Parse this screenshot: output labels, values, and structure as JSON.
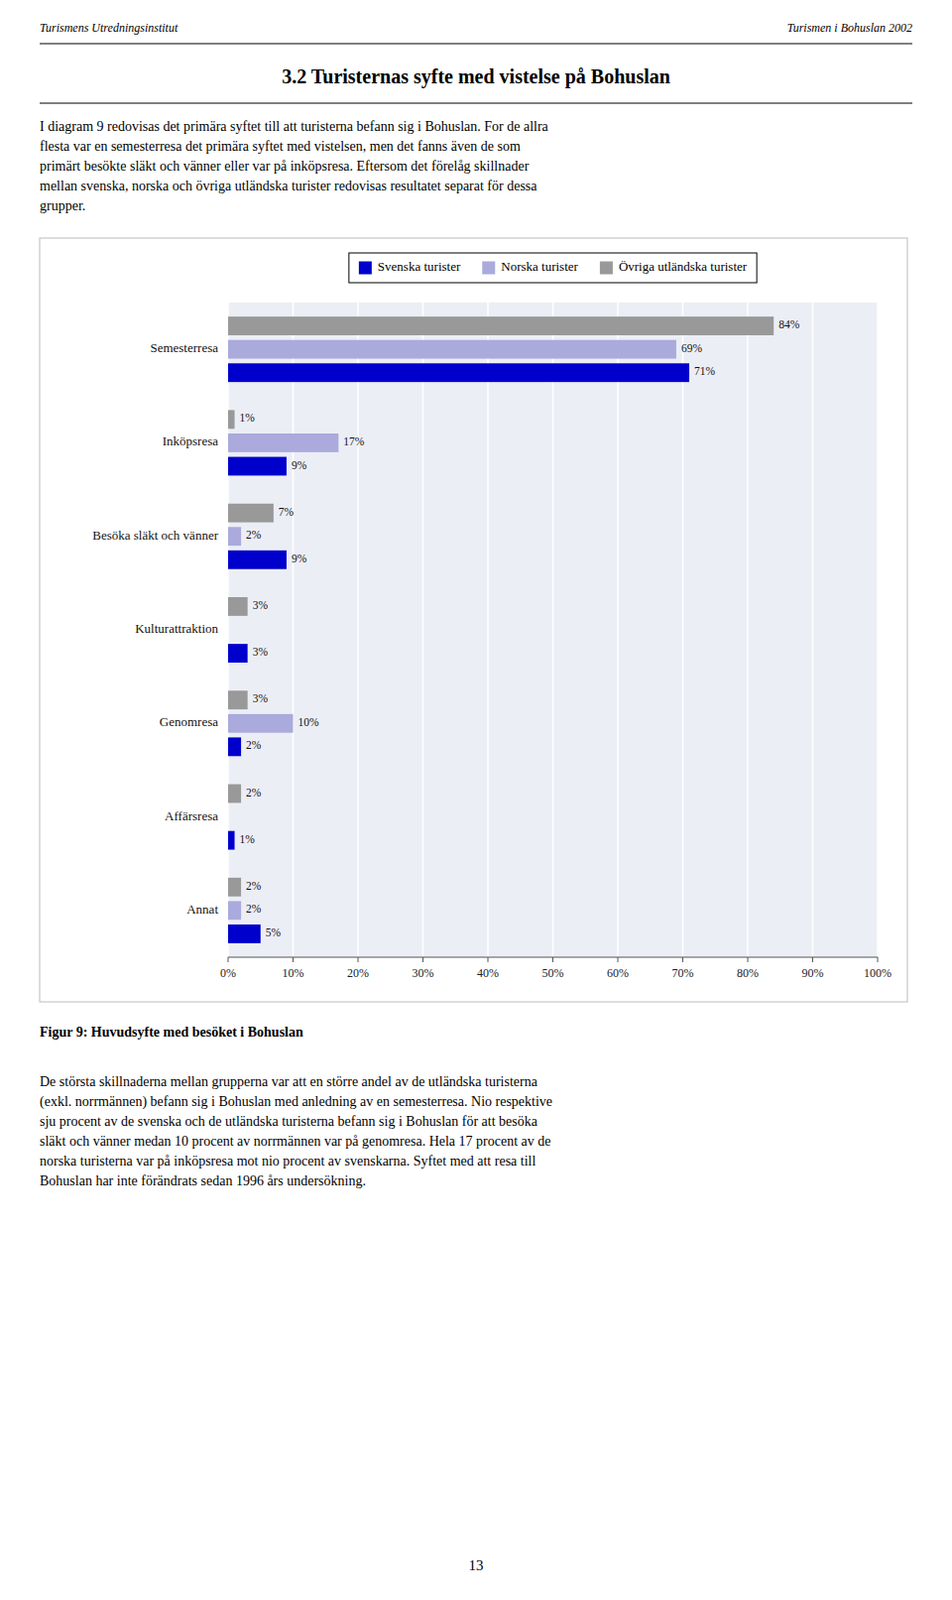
{
  "header": [
    "Turismens Utredningsinstitut",
    "Turismen i Bohuslan 2002"
  ],
  "heading": "3.2  Turisternas syfte med vistelse på Bohuslan",
  "intro": [
    "I diagram 9 redovisas det primära syftet till att turisterna befann sig i Bohuslan. For de allra",
    "flesta var en semesterresa det primära syftet med vistelsen, men det fanns även de som",
    "primärt besökte släkt och vänner eller var på inköpsresa. Eftersom det förelåg skillnader",
    "mellan svenska, norska och övriga utländska turister redovisas resultatet separat för dessa",
    "grupper."
  ],
  "body": [
    "De största skillnaderna mellan grupperna var att en större andel av de utländska turisterna",
    "(exkl. norrmännen) befann sig i Bohuslan med anledning av en semesterresa. Nio respektive",
    "sju procent av de svenska och de utländska turisterna befann sig i Bohuslan för att besöka",
    "släkt och vänner medan 10 procent av norrmännen var på genomresa. Hela 17 procent av de",
    "norska turisterna var på inköpsresa mot nio procent av svenskarna. Syftet med att resa till",
    "Bohuslan har inte förändrats sedan 1996 års undersökning."
  ],
  "page_number": "13",
  "chart_data": {
    "type": "bar",
    "orientation": "horizontal",
    "title": "Figur 9: Huvudsyfte med besöket i Bohuslan",
    "categories": [
      "Semesterresa",
      "Inköpsresa",
      "Besöka släkt och vänner",
      "Kulturattraktion",
      "Genomresa",
      "Affärsresa",
      "Annat"
    ],
    "series": [
      {
        "name": "Svenska turister",
        "color": "#0000cc",
        "values": [
          71,
          9,
          9,
          3,
          2,
          1,
          5
        ],
        "value_labels": [
          "71%",
          "9%",
          "9%",
          "3%",
          "2%",
          "1%",
          "5%"
        ]
      },
      {
        "name": "Norska turister",
        "color": "#aaaadd",
        "values": [
          69,
          17,
          2,
          0,
          10,
          0,
          2
        ],
        "value_labels": [
          "69%",
          "17%",
          "2%",
          null,
          "10%",
          null,
          "2%"
        ]
      },
      {
        "name": "Övriga utländska turister",
        "color": "#999999",
        "values": [
          84,
          1,
          7,
          3,
          3,
          2,
          2
        ],
        "value_labels": [
          "84%",
          "1%",
          "7%",
          "3%",
          "3%",
          "2%",
          "2%"
        ]
      }
    ],
    "xlim": [
      0,
      100
    ],
    "xticks": [
      {
        "value": 0,
        "label": "0%"
      },
      {
        "value": 10,
        "label": "10%"
      },
      {
        "value": 20,
        "label": "20%"
      },
      {
        "value": 30,
        "label": "30%"
      },
      {
        "value": 40,
        "label": "40%"
      },
      {
        "value": 50,
        "label": "50%"
      },
      {
        "value": 60,
        "label": "60%"
      },
      {
        "value": 70,
        "label": "70%"
      },
      {
        "value": 80,
        "label": "80%"
      },
      {
        "value": 90,
        "label": "90%"
      },
      {
        "value": 100,
        "label": "100%"
      }
    ],
    "grid": true,
    "legend": "top",
    "data_labels": true
  }
}
